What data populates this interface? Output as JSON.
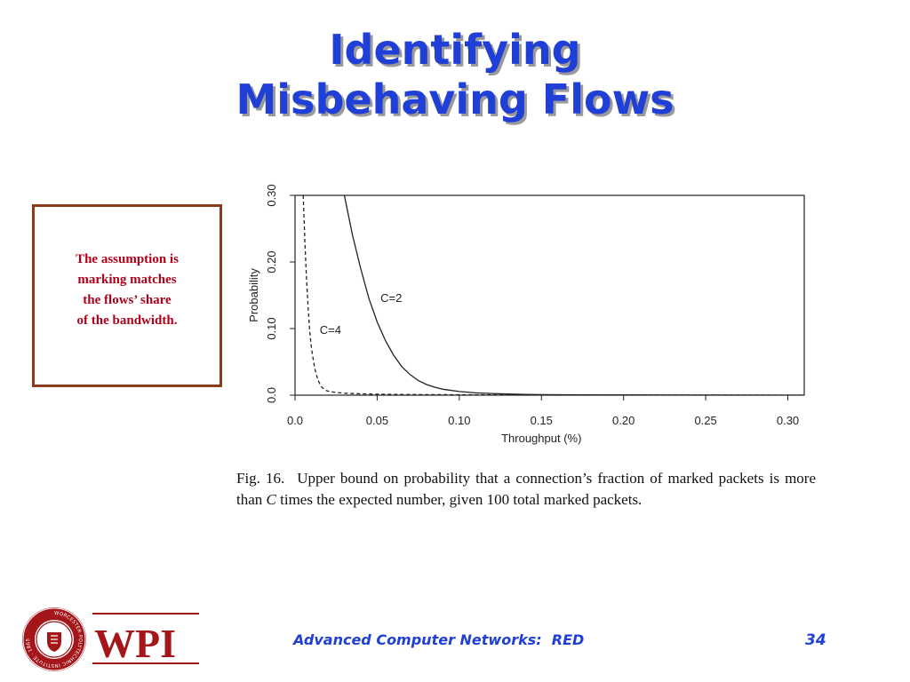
{
  "slide": {
    "title_lines": [
      "Identifying",
      "Misbehaving Flows"
    ],
    "note_lines": [
      "The assumption is",
      "marking matches",
      "the flows’ share",
      "of the bandwidth."
    ],
    "caption": {
      "figure_number": "Fig. 16.",
      "text_before_c": "Upper bound on probability that a connection’s fraction of marked packets is more than ",
      "c_symbol": "C",
      "text_after_c": " times the expected number, given 100 total marked packets."
    },
    "footer": {
      "course_title": "Advanced Computer Networks:  RED",
      "page_number": "34",
      "logo": {
        "wordmark": "WPI",
        "seal_text": "WORCESTER POLYTECHNIC INSTITUTE · 1865"
      }
    },
    "colors": {
      "title": "#1f3fd6",
      "footer": "#1f3fd6",
      "note_text": "#b0001a",
      "note_border": "#8b3a1a",
      "logo_maroon": "#a4161a"
    }
  },
  "chart_data": {
    "type": "line",
    "xlabel": "Throughput (%)",
    "ylabel": "Probability",
    "xlim": [
      0,
      0.31
    ],
    "ylim": [
      0,
      0.3
    ],
    "x_ticks": [
      "0.0",
      "0.05",
      "0.10",
      "0.15",
      "0.20",
      "0.25",
      "0.30"
    ],
    "x_tick_values": [
      0,
      0.05,
      0.1,
      0.15,
      0.2,
      0.25,
      0.3
    ],
    "y_ticks": [
      "0.0",
      "0.10",
      "0.20",
      "0.30"
    ],
    "y_tick_values": [
      0,
      0.1,
      0.2,
      0.3
    ],
    "grid": false,
    "series": [
      {
        "name": "C=2",
        "style": "solid",
        "x": [
          0.03,
          0.035,
          0.04,
          0.045,
          0.05,
          0.055,
          0.06,
          0.065,
          0.07,
          0.075,
          0.08,
          0.085,
          0.09,
          0.1,
          0.11,
          0.12,
          0.13,
          0.14,
          0.15,
          0.175,
          0.2,
          0.25,
          0.31
        ],
        "y": [
          0.3,
          0.24,
          0.19,
          0.145,
          0.11,
          0.082,
          0.06,
          0.043,
          0.031,
          0.022,
          0.016,
          0.012,
          0.009,
          0.0055,
          0.0035,
          0.0025,
          0.0018,
          0.0012,
          0.0008,
          0.0004,
          0.0002,
          0.0001,
          0.0
        ]
      },
      {
        "name": "C=4",
        "style": "dashed",
        "x": [
          0.005,
          0.006,
          0.007,
          0.008,
          0.009,
          0.01,
          0.012,
          0.014,
          0.016,
          0.018,
          0.02,
          0.025,
          0.03,
          0.04,
          0.05,
          0.07,
          0.1,
          0.15,
          0.2,
          0.31
        ],
        "y": [
          0.3,
          0.23,
          0.175,
          0.13,
          0.095,
          0.07,
          0.04,
          0.022,
          0.013,
          0.008,
          0.006,
          0.004,
          0.003,
          0.002,
          0.0015,
          0.001,
          0.0007,
          0.0004,
          0.0002,
          0.0
        ]
      }
    ],
    "annotations": [
      {
        "text": "C=2",
        "x": 0.052,
        "y": 0.14
      },
      {
        "text": "C=4",
        "x": 0.015,
        "y": 0.092
      }
    ]
  }
}
